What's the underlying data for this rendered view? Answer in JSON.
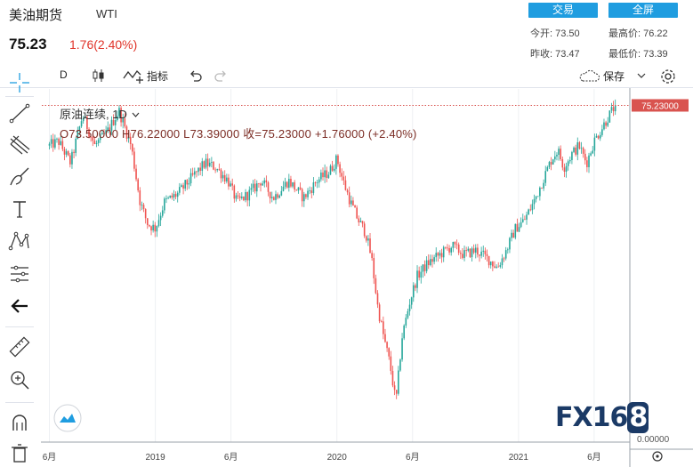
{
  "header": {
    "title": "美油期货",
    "symbol": "WTI",
    "price": "75.23",
    "change": "1.76(2.40%)",
    "trade_button": "交易",
    "fullscreen_button": "全屏",
    "stats": {
      "open_label": "今开:",
      "open_value": "73.50",
      "high_label": "最高价:",
      "high_value": "76.22",
      "prev_label": "昨收:",
      "prev_value": "73.47",
      "low_label": "最低价:",
      "low_value": "73.39"
    }
  },
  "toolbar": {
    "interval": "D",
    "indicators": "指标",
    "save": "保存"
  },
  "legend": {
    "series": "原油连续, 1D",
    "ohlc": "O73.50000   H76.22000   L73.39000   收=75.23000   +1.76000 (+2.40%)"
  },
  "watermark": {
    "text": "FX16",
    "last": "8"
  },
  "colors": {
    "up": "#26a69a",
    "down": "#ef5350",
    "price_label": "#d9534f",
    "accent": "#1f9de0"
  },
  "icons": [
    "crosshair-icon",
    "trend-line-icon",
    "pitchfork-icon",
    "brush-icon",
    "text-icon",
    "pattern-icon",
    "measure-icon",
    "back-arrow-icon",
    "ruler-icon",
    "zoom-in-icon",
    "magnet-icon",
    "trash-icon",
    "candles-icon",
    "indicator-icon",
    "undo-icon",
    "redo-icon",
    "cloud-icon",
    "gear-icon",
    "chevron-down-icon"
  ],
  "chart_data": {
    "type": "candlestick",
    "series_name": "原油连续, 1D",
    "last_price": 75.23,
    "last_price_label": "75.23000",
    "axis_bottom_label": "0.00000",
    "x_ticks": [
      {
        "label": "6月",
        "t": 0
      },
      {
        "label": "2019",
        "t": 7
      },
      {
        "label": "6月",
        "t": 12
      },
      {
        "label": "2020",
        "t": 19
      },
      {
        "label": "6月",
        "t": 24
      },
      {
        "label": "2021",
        "t": 31
      },
      {
        "label": "6月",
        "t": 36
      }
    ],
    "x_range": [
      -0.5,
      38.3
    ],
    "y_range": [
      -2,
      79
    ],
    "path": [
      [
        0,
        66
      ],
      [
        0.6,
        67
      ],
      [
        1.4,
        62
      ],
      [
        2.2,
        73
      ],
      [
        3.0,
        66
      ],
      [
        3.8,
        69
      ],
      [
        4.6,
        74
      ],
      [
        5.4,
        66
      ],
      [
        6.0,
        53
      ],
      [
        6.5,
        48
      ],
      [
        7.0,
        47
      ],
      [
        7.6,
        53
      ],
      [
        8.5,
        55
      ],
      [
        9.5,
        59
      ],
      [
        10.3,
        62
      ],
      [
        11.0,
        61
      ],
      [
        11.8,
        58
      ],
      [
        12.4,
        53
      ],
      [
        13.2,
        55
      ],
      [
        14.0,
        58
      ],
      [
        14.8,
        54
      ],
      [
        15.8,
        58
      ],
      [
        16.8,
        54
      ],
      [
        17.7,
        58
      ],
      [
        18.5,
        60
      ],
      [
        19.0,
        63
      ],
      [
        19.4,
        58
      ],
      [
        19.9,
        53
      ],
      [
        20.4,
        49
      ],
      [
        20.9,
        46
      ],
      [
        21.3,
        40
      ],
      [
        21.7,
        29
      ],
      [
        22.1,
        22
      ],
      [
        22.5,
        16
      ],
      [
        22.9,
        7
      ],
      [
        23.3,
        22
      ],
      [
        23.8,
        30
      ],
      [
        24.3,
        36
      ],
      [
        25.0,
        39
      ],
      [
        25.8,
        41
      ],
      [
        26.6,
        43
      ],
      [
        27.4,
        41
      ],
      [
        28.2,
        42
      ],
      [
        29.0,
        40
      ],
      [
        29.6,
        38
      ],
      [
        30.2,
        42
      ],
      [
        30.8,
        47
      ],
      [
        31.4,
        49
      ],
      [
        32.0,
        53
      ],
      [
        32.6,
        58
      ],
      [
        33.2,
        63
      ],
      [
        33.6,
        65
      ],
      [
        34.0,
        61
      ],
      [
        34.5,
        64
      ],
      [
        35.0,
        66
      ],
      [
        35.5,
        62
      ],
      [
        36.0,
        67
      ],
      [
        36.5,
        70
      ],
      [
        37.0,
        73
      ],
      [
        37.4,
        75.23
      ]
    ]
  }
}
